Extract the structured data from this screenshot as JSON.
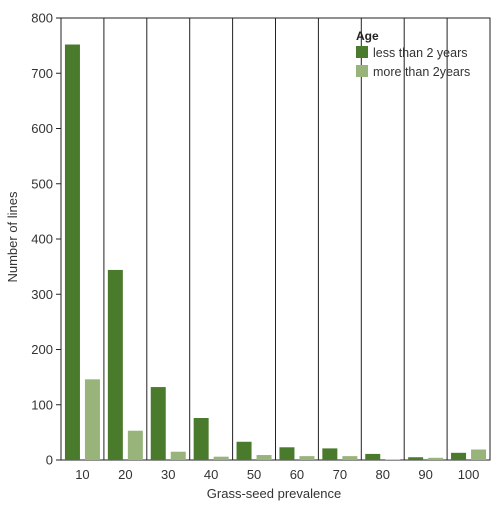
{
  "chart_data": {
    "type": "bar",
    "xlabel": "Grass-seed prevalence",
    "ylabel": "Number of lines",
    "categories": [
      "10",
      "20",
      "30",
      "40",
      "50",
      "60",
      "70",
      "80",
      "90",
      "100"
    ],
    "series": [
      {
        "name": "less than 2 years",
        "color": "#4a7a2c",
        "values": [
          752,
          344,
          132,
          76,
          33,
          23,
          21,
          11,
          5,
          13
        ]
      },
      {
        "name": "more than 2years",
        "color": "#98b47a",
        "values": [
          146,
          53,
          15,
          6,
          9,
          7,
          7,
          1,
          4,
          19
        ]
      }
    ],
    "ylim": [
      0,
      800
    ],
    "yticks": [
      0,
      100,
      200,
      300,
      400,
      500,
      600,
      700,
      800
    ],
    "legend": {
      "title": "Age",
      "position": "top-right"
    },
    "grid": {
      "vertical_category_dividers": true,
      "horizontal": false
    }
  }
}
